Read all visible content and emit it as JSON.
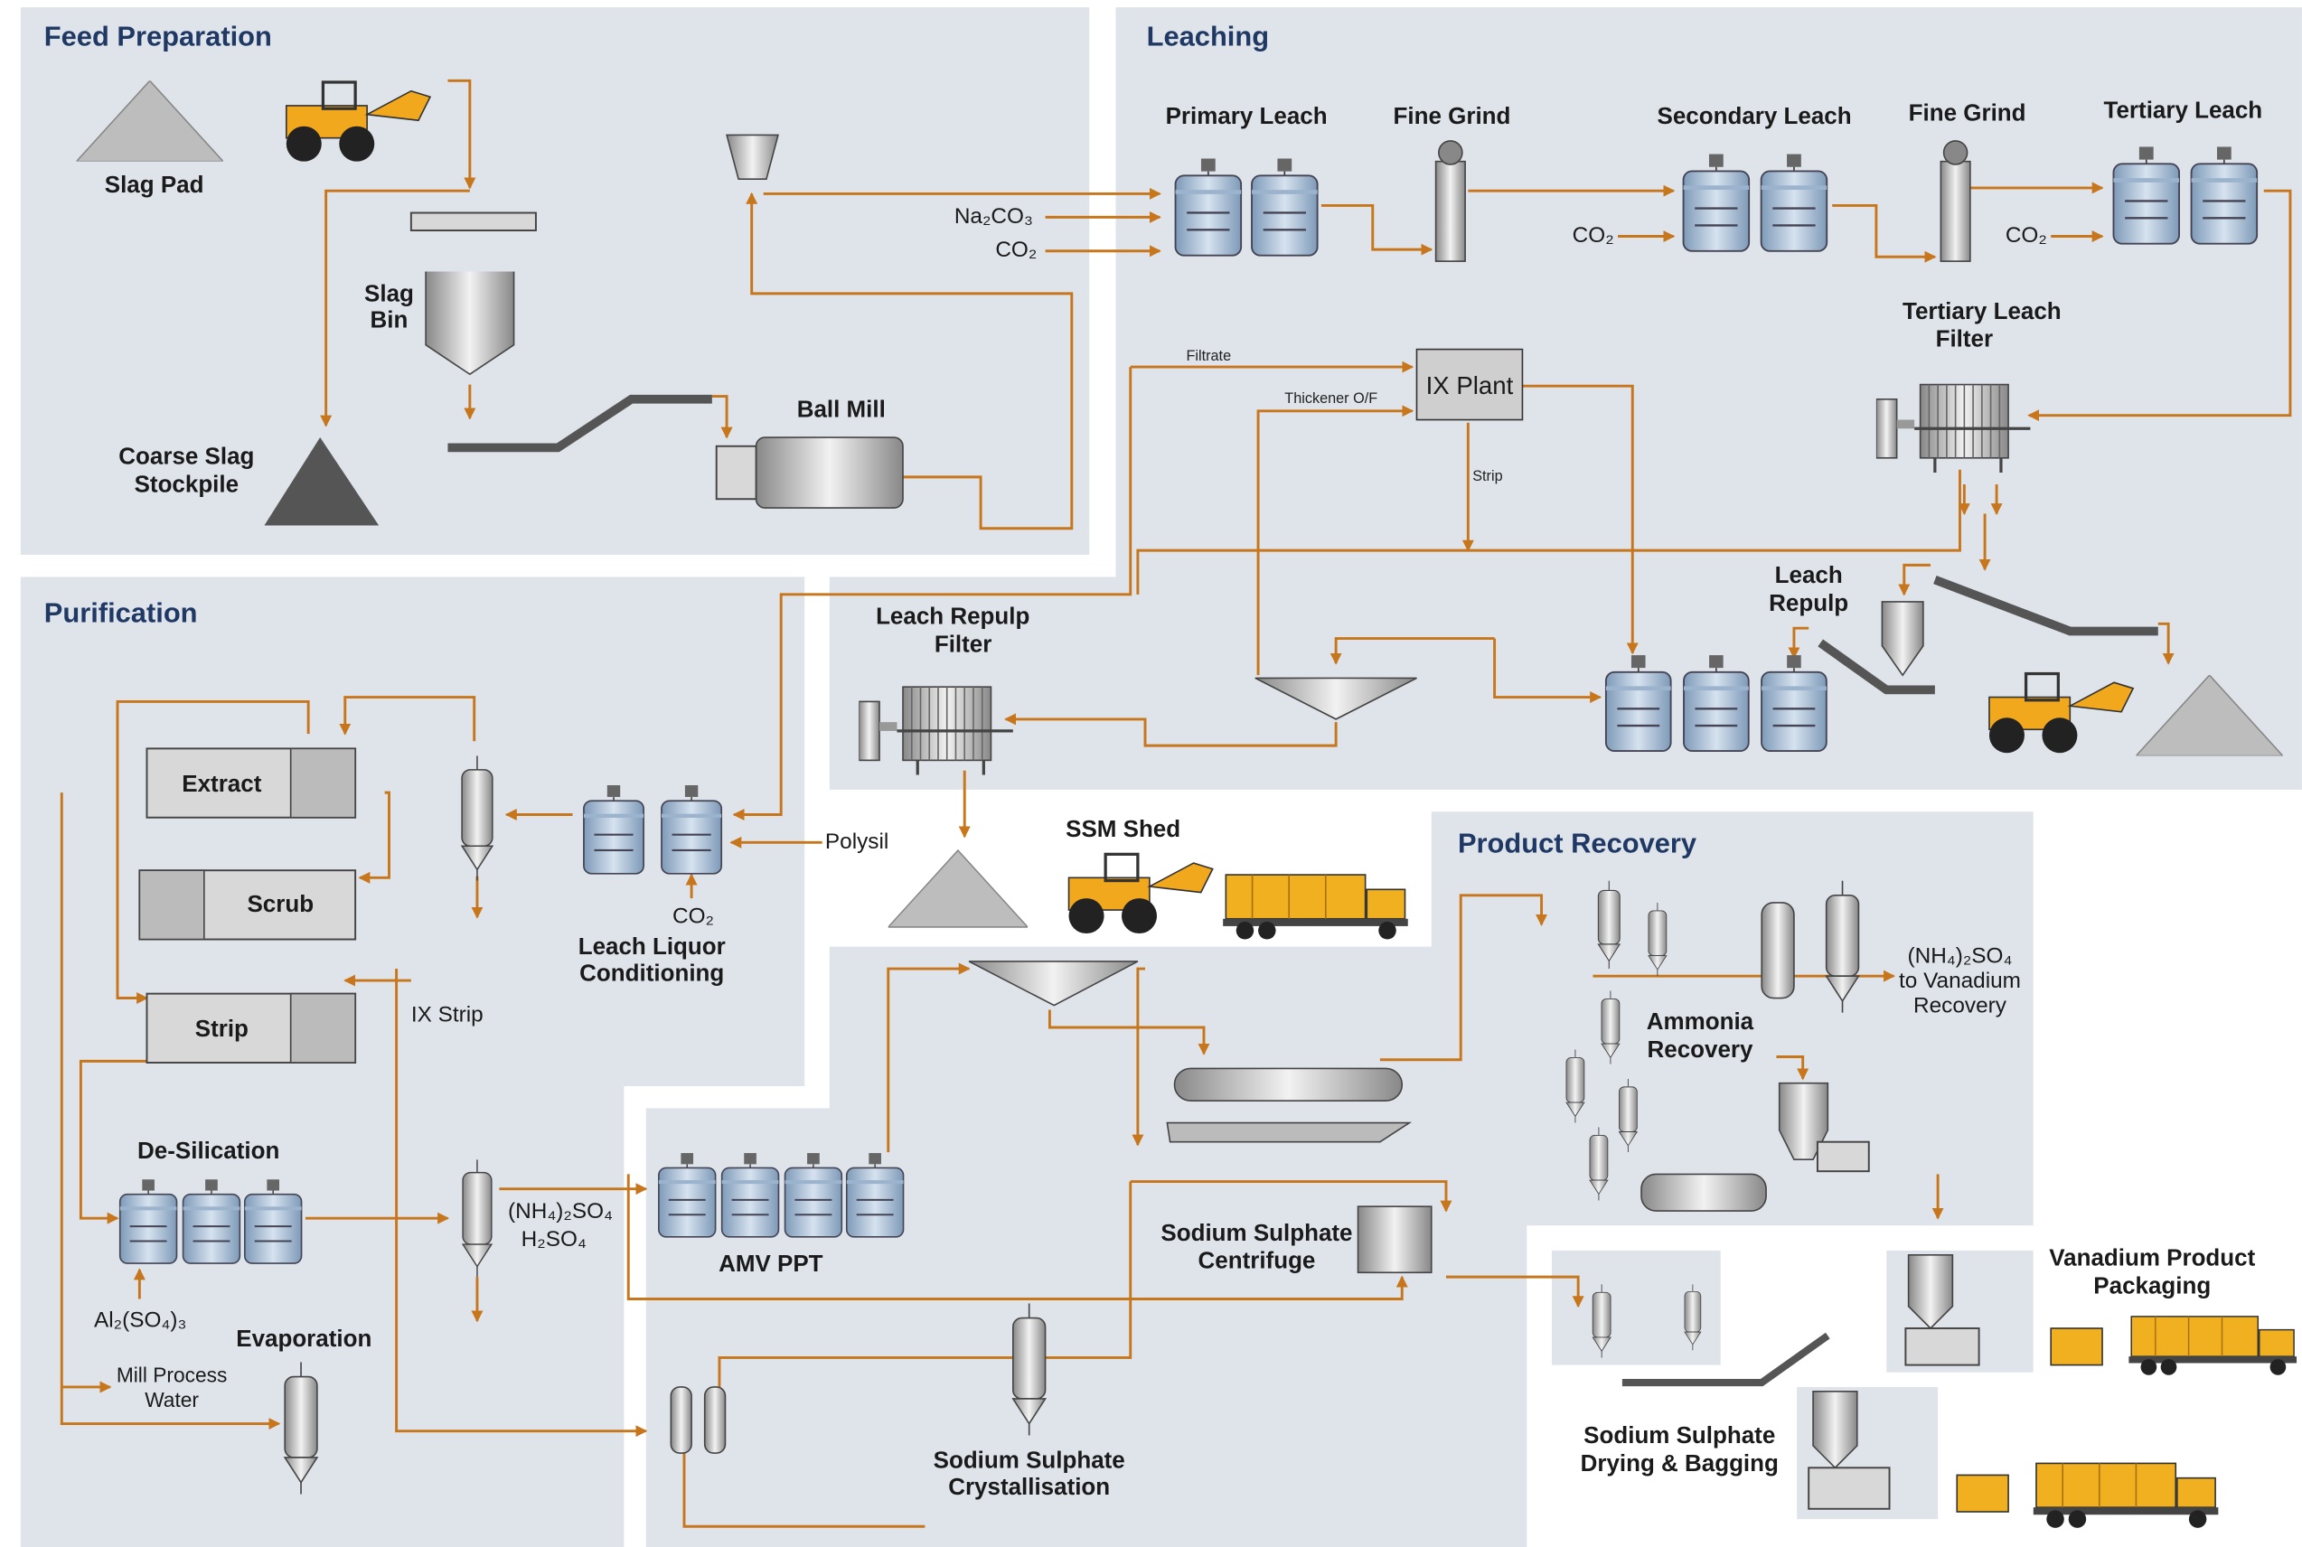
{
  "sections": {
    "feed_preparation": "Feed Preparation",
    "leaching": "Leaching",
    "purification": "Purification",
    "product_recovery": "Product Recovery"
  },
  "labels": {
    "slag_pad": [
      "Slag Pad"
    ],
    "slag_bin": [
      "Slag",
      "Bin"
    ],
    "coarse_slag_stockpile": [
      "Coarse Slag",
      "Stockpile"
    ],
    "ball_mill": [
      "Ball Mill"
    ],
    "na2co3": [
      "Na₂CO₃"
    ],
    "co2_feed": [
      "CO₂"
    ],
    "primary_leach": [
      "Primary Leach"
    ],
    "fine_grind_1": [
      "Fine Grind"
    ],
    "secondary_leach": [
      "Secondary Leach"
    ],
    "fine_grind_2": [
      "Fine Grind"
    ],
    "tertiary_leach": [
      "Tertiary Leach"
    ],
    "co2_secondary": [
      "CO₂"
    ],
    "co2_tertiary": [
      "CO₂"
    ],
    "tertiary_leach_filter": [
      "Tertiary Leach",
      "Filter"
    ],
    "filtrate": [
      "Filtrate"
    ],
    "thickener_of": [
      "Thickener O/F"
    ],
    "ix_plant": [
      "IX Plant"
    ],
    "strip_line": [
      "Strip"
    ],
    "leach_repulp": [
      "Leach",
      "Repulp"
    ],
    "leach_repulp_filter": [
      "Leach Repulp",
      "Filter"
    ],
    "ssm_shed": [
      "SSM Shed"
    ],
    "extract": [
      "Extract"
    ],
    "scrub": [
      "Scrub"
    ],
    "strip": [
      "Strip"
    ],
    "polysil": [
      "Polysil"
    ],
    "co2_conditioning": [
      "CO₂"
    ],
    "leach_liquor_conditioning": [
      "Leach Liquor",
      "Conditioning"
    ],
    "ix_strip": [
      "IX Strip"
    ],
    "de_silication": [
      "De-Silication"
    ],
    "nh4_2so4_ppt": [
      "(NH₄)₂SO₄"
    ],
    "h2so4": [
      "H₂SO₄"
    ],
    "amv_ppt": [
      "AMV PPT"
    ],
    "al2so43": [
      "Al₂(SO₄)₃"
    ],
    "evaporation": [
      "Evaporation"
    ],
    "mill_process_water": [
      "Mill Process",
      "Water"
    ],
    "sodium_sulphate_centrifuge": [
      "Sodium Sulphate",
      "Centrifuge"
    ],
    "sodium_sulphate_crystallisation": [
      "Sodium Sulphate",
      "Crystallisation"
    ],
    "nh4_2so4_recovery": [
      "(NH₄)₂SO₄",
      "to Vanadium",
      "Recovery"
    ],
    "ammonia_recovery": [
      "Ammonia",
      "Recovery"
    ],
    "vanadium_product_packaging": [
      "Vanadium Product",
      "Packaging"
    ],
    "sodium_sulphate_drying_bagging": [
      "Sodium Sulphate",
      "Drying & Bagging"
    ]
  }
}
